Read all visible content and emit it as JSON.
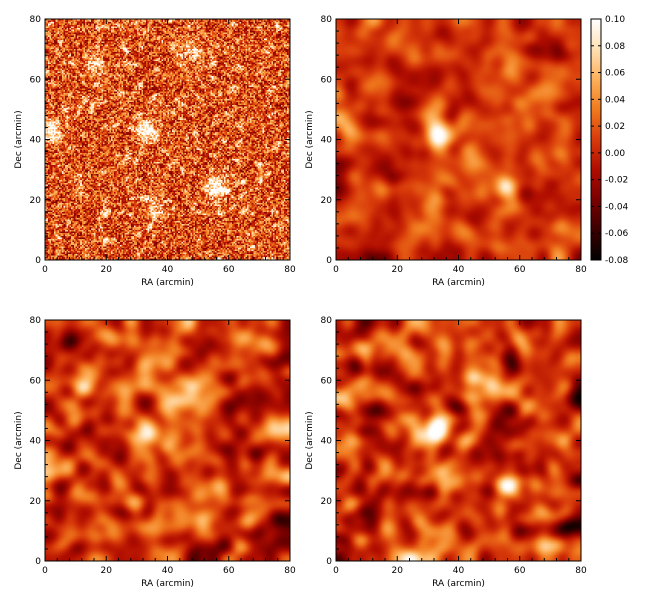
{
  "chart_data": [
    {
      "type": "heatmap",
      "panel": "top-left",
      "xlabel": "RA (arcmin)",
      "ylabel": "Dec (arcmin)",
      "xlim": [
        0,
        80
      ],
      "ylim": [
        0,
        80
      ],
      "xticks": [
        "0",
        "20",
        "40",
        "60",
        "80"
      ],
      "yticks": [
        "0",
        "20",
        "40",
        "60",
        "80"
      ],
      "smoothing": "unsmoothed",
      "noise": "high",
      "sources": [
        {
          "x": 2,
          "y": 43,
          "value": 0.08
        },
        {
          "x": 33,
          "y": 43,
          "value": 0.1
        },
        {
          "x": 56,
          "y": 24,
          "value": 0.09
        },
        {
          "x": 16,
          "y": 65,
          "value": 0.06
        },
        {
          "x": 48,
          "y": 70,
          "value": 0.05
        },
        {
          "x": 36,
          "y": 18,
          "value": 0.04
        }
      ]
    },
    {
      "type": "heatmap",
      "panel": "top-right",
      "xlabel": "RA (arcmin)",
      "ylabel": "Dec (arcmin)",
      "xlim": [
        0,
        80
      ],
      "ylim": [
        0,
        80
      ],
      "xticks": [
        "0",
        "20",
        "40",
        "60",
        "80"
      ],
      "yticks": [
        "0",
        "20",
        "40",
        "60",
        "80"
      ],
      "smoothing": "smooth",
      "noise": "low",
      "sources": [
        {
          "x": 33,
          "y": 42,
          "value": 0.1
        },
        {
          "x": 56,
          "y": 24,
          "value": 0.08
        },
        {
          "x": 4,
          "y": 44,
          "value": 0.035
        },
        {
          "x": 33,
          "y": 52,
          "value": 0.03
        },
        {
          "x": 31,
          "y": 17,
          "value": 0.03
        },
        {
          "x": 50,
          "y": 68,
          "value": 0.025
        }
      ]
    },
    {
      "type": "heatmap",
      "panel": "bottom-left",
      "xlabel": "RA (arcmin)",
      "ylabel": "Dec (arcmin)",
      "xlim": [
        0,
        80
      ],
      "ylim": [
        0,
        80
      ],
      "xticks": [
        "0",
        "20",
        "40",
        "60",
        "80"
      ],
      "yticks": [
        "0",
        "20",
        "40",
        "60",
        "80"
      ],
      "smoothing": "smooth",
      "noise": "medium",
      "sources": [
        {
          "x": 33,
          "y": 43,
          "value": 0.1
        },
        {
          "x": 57,
          "y": 24,
          "value": 0.07
        },
        {
          "x": 35,
          "y": 30,
          "value": 0.045
        },
        {
          "x": 46,
          "y": 57,
          "value": 0.04
        },
        {
          "x": 10,
          "y": 47,
          "value": 0.035
        },
        {
          "x": 24,
          "y": 60,
          "value": 0.035
        }
      ]
    },
    {
      "type": "heatmap",
      "panel": "bottom-right",
      "xlabel": "RA (arcmin)",
      "ylabel": "Dec (arcmin)",
      "xlim": [
        0,
        80
      ],
      "ylim": [
        0,
        80
      ],
      "xticks": [
        "0",
        "20",
        "40",
        "60",
        "80"
      ],
      "yticks": [
        "0",
        "20",
        "40",
        "60",
        "80"
      ],
      "smoothing": "smooth",
      "noise": "medium",
      "sources": [
        {
          "x": 33,
          "y": 43,
          "value": 0.1
        },
        {
          "x": 57,
          "y": 25,
          "value": 0.08
        },
        {
          "x": 35,
          "y": 30,
          "value": 0.04
        },
        {
          "x": 46,
          "y": 58,
          "value": 0.035
        },
        {
          "x": 62,
          "y": 62,
          "value": 0.035
        },
        {
          "x": 26,
          "y": 64,
          "value": 0.03
        }
      ]
    }
  ],
  "colorbar": {
    "min": -0.08,
    "max": 0.1,
    "ticks": [
      "0.10",
      "0.08",
      "0.06",
      "0.04",
      "0.02",
      "0.00",
      "-0.02",
      "-0.04",
      "-0.06",
      "-0.08"
    ],
    "tick_values": [
      0.1,
      0.08,
      0.06,
      0.04,
      0.02,
      0.0,
      -0.02,
      -0.04,
      -0.06,
      -0.08
    ],
    "colormap": [
      "#000000",
      "#3a0000",
      "#7a0000",
      "#b00d00",
      "#d83a0a",
      "#f07a1e",
      "#fdb05a",
      "#fee0b5",
      "#ffffff"
    ]
  }
}
